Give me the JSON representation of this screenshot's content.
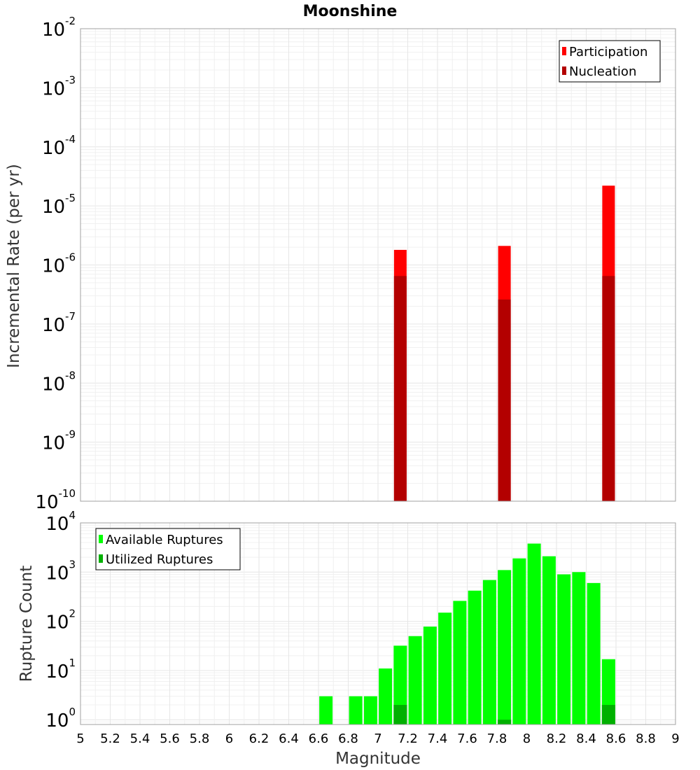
{
  "chart_data": [
    {
      "type": "bar",
      "title": "Moonshine",
      "ylabel": "Incremental Rate (per yr)",
      "xlabel": "",
      "yscale": "log",
      "ylim": [
        1e-10,
        0.01
      ],
      "xlim": [
        5,
        9
      ],
      "y_tick_labels": [
        {
          "value": 0.01,
          "base": "10",
          "exp": "-2"
        },
        {
          "value": 0.001,
          "base": "10",
          "exp": "-3"
        },
        {
          "value": 0.0001,
          "base": "10",
          "exp": "-4"
        },
        {
          "value": 1e-05,
          "base": "10",
          "exp": "-5"
        },
        {
          "value": 1e-06,
          "base": "10",
          "exp": "-6"
        },
        {
          "value": 1e-07,
          "base": "10",
          "exp": "-7"
        },
        {
          "value": 1e-08,
          "base": "10",
          "exp": "-8"
        },
        {
          "value": 1e-09,
          "base": "10",
          "exp": "-9"
        },
        {
          "value": 1e-10,
          "base": "10",
          "exp": "-10"
        }
      ],
      "legend": {
        "position": "top-right"
      },
      "grid": true,
      "series": [
        {
          "name": "Participation",
          "color": "#ff0000",
          "x": [
            7.15,
            7.85,
            8.55
          ],
          "values": [
            1.8e-06,
            2.1e-06,
            2.2e-05
          ]
        },
        {
          "name": "Nucleation",
          "color": "#b30000",
          "x": [
            7.15,
            7.85,
            8.55
          ],
          "values": [
            6.5e-07,
            2.6e-07,
            6.5e-07
          ]
        }
      ]
    },
    {
      "type": "bar",
      "title": "",
      "ylabel": "Rupture Count",
      "xlabel": "Magnitude",
      "yscale": "log",
      "ylim": [
        0.8,
        10000
      ],
      "xlim": [
        5,
        9
      ],
      "x_tick_labels": [
        "5",
        "5.2",
        "5.4",
        "5.6",
        "5.8",
        "6",
        "6.2",
        "6.4",
        "6.6",
        "6.8",
        "7",
        "7.2",
        "7.4",
        "7.6",
        "7.8",
        "8",
        "8.2",
        "8.4",
        "8.6",
        "8.8",
        "9"
      ],
      "y_tick_labels": [
        {
          "value": 10000,
          "base": "10",
          "exp": "4"
        },
        {
          "value": 1000,
          "base": "10",
          "exp": "3"
        },
        {
          "value": 100,
          "base": "10",
          "exp": "2"
        },
        {
          "value": 10,
          "base": "10",
          "exp": "1"
        },
        {
          "value": 1,
          "base": "10",
          "exp": "0"
        }
      ],
      "legend": {
        "position": "top-left"
      },
      "grid": true,
      "series": [
        {
          "name": "Available Ruptures",
          "color": "#00ff00",
          "x": [
            6.65,
            6.85,
            6.95,
            7.05,
            7.15,
            7.25,
            7.35,
            7.45,
            7.55,
            7.65,
            7.75,
            7.85,
            7.95,
            8.05,
            8.15,
            8.25,
            8.35,
            8.45,
            8.55
          ],
          "values": [
            3,
            3,
            3,
            11,
            32,
            50,
            78,
            150,
            260,
            420,
            690,
            1100,
            1900,
            3800,
            2100,
            900,
            1000,
            600,
            17
          ]
        },
        {
          "name": "Utilized Ruptures",
          "color": "#00b000",
          "x": [
            7.15,
            7.85,
            8.55
          ],
          "values": [
            2,
            1,
            2
          ]
        }
      ]
    }
  ]
}
